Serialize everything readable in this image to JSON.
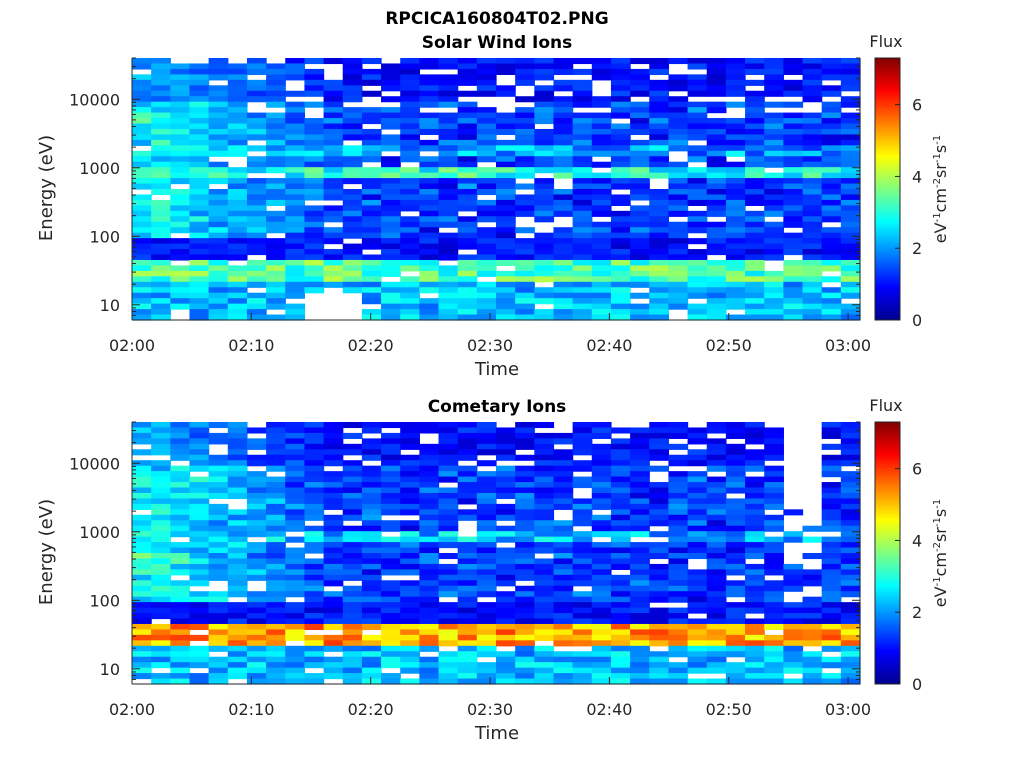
{
  "figure": {
    "title": "RPCICA160804T02.PNG"
  },
  "chart_data": [
    {
      "type": "heatmap",
      "title": "Solar Wind Ions",
      "xlabel": "Time",
      "ylabel": "Energy (eV)",
      "x_ticks": [
        "02:00",
        "02:10",
        "02:20",
        "02:30",
        "02:40",
        "02:50",
        "03:00"
      ],
      "x_range": [
        "02:00",
        "03:01"
      ],
      "y_scale": "log",
      "y_ticks": [
        "10",
        "100",
        "1000",
        "10000"
      ],
      "y_range": [
        6,
        40000
      ],
      "colorbar": {
        "label": "Flux",
        "unit": "eV-1cm-2sr-1s-1",
        "range": [
          0,
          7.3
        ],
        "ticks": [
          "0",
          "2",
          "4",
          "6"
        ],
        "colormap": "jet"
      },
      "bands": [
        {
          "energy_low": 20,
          "energy_high": 45,
          "flux": 3.3
        },
        {
          "energy_low": 650,
          "energy_high": 1000,
          "flux": 3.0
        },
        {
          "energy_low": 1500,
          "energy_high": 2100,
          "flux": 2.0
        }
      ]
    },
    {
      "type": "heatmap",
      "title": "Cometary Ions",
      "xlabel": "Time",
      "ylabel": "Energy (eV)",
      "x_ticks": [
        "02:00",
        "02:10",
        "02:20",
        "02:30",
        "02:40",
        "02:50",
        "03:00"
      ],
      "x_range": [
        "02:00",
        "03:01"
      ],
      "y_scale": "log",
      "y_ticks": [
        "10",
        "100",
        "1000",
        "10000"
      ],
      "y_range": [
        6,
        40000
      ],
      "colorbar": {
        "label": "Flux",
        "unit": "eV-1cm-2sr-1s-1",
        "range": [
          0,
          7.3
        ],
        "ticks": [
          "0",
          "2",
          "4",
          "6"
        ],
        "colormap": "jet"
      },
      "bands": [
        {
          "energy_low": 20,
          "energy_high": 45,
          "flux": 5.2
        },
        {
          "energy_low": 700,
          "energy_high": 1100,
          "flux": 2.3
        }
      ]
    }
  ]
}
